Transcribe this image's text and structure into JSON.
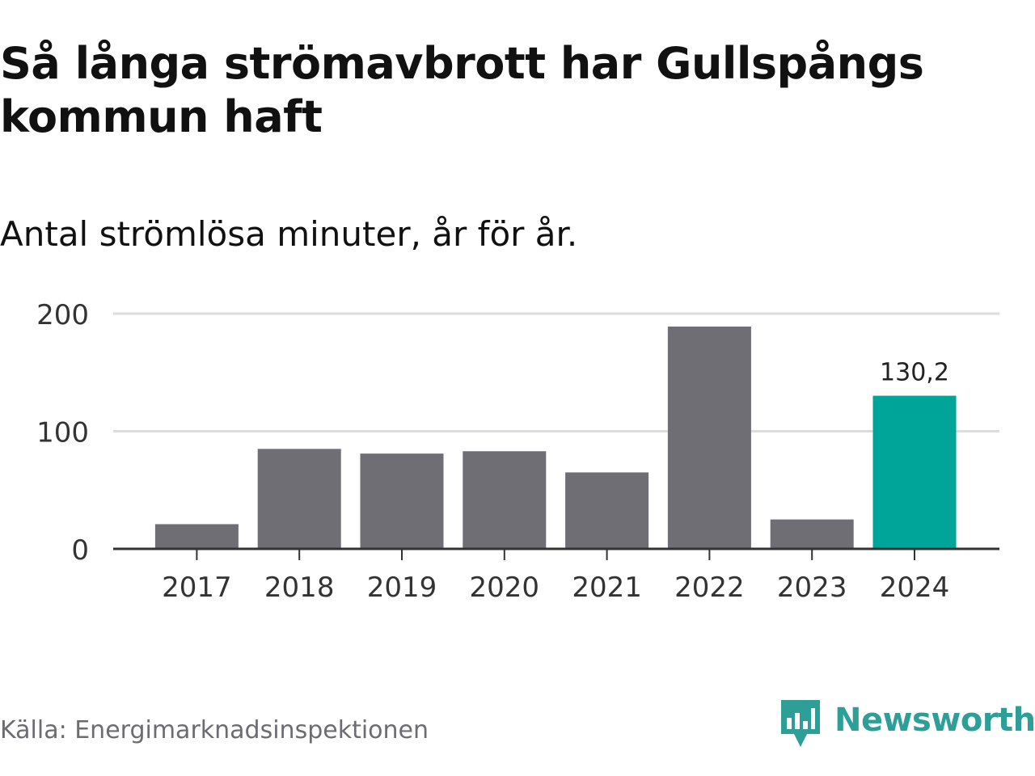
{
  "title": "Så långa strömavbrott har Gullspångs kommun haft",
  "subtitle": "Antal strömlösa minuter, år för år.",
  "source": "Källa: Energimarknadsinspektionen",
  "brand": {
    "name": "Newsworthy",
    "logo_icon": "newsworthy-logo-icon",
    "color": "#2e9f97"
  },
  "colors": {
    "bar": "#6f6e74",
    "highlight": "#00a59a",
    "grid": "#dddddd",
    "axis": "#333333"
  },
  "chart_data": {
    "type": "bar",
    "categories": [
      "2017",
      "2018",
      "2019",
      "2020",
      "2021",
      "2022",
      "2023",
      "2024"
    ],
    "values": [
      21,
      85,
      81,
      83,
      65,
      189,
      25,
      130.2
    ],
    "ylim": [
      0,
      200
    ],
    "yticks": [
      "0",
      "100",
      "200"
    ],
    "highlight_index": 7,
    "data_labels": [
      {
        "index": 7,
        "text": "130,2"
      }
    ],
    "grid": true,
    "legend": false
  }
}
